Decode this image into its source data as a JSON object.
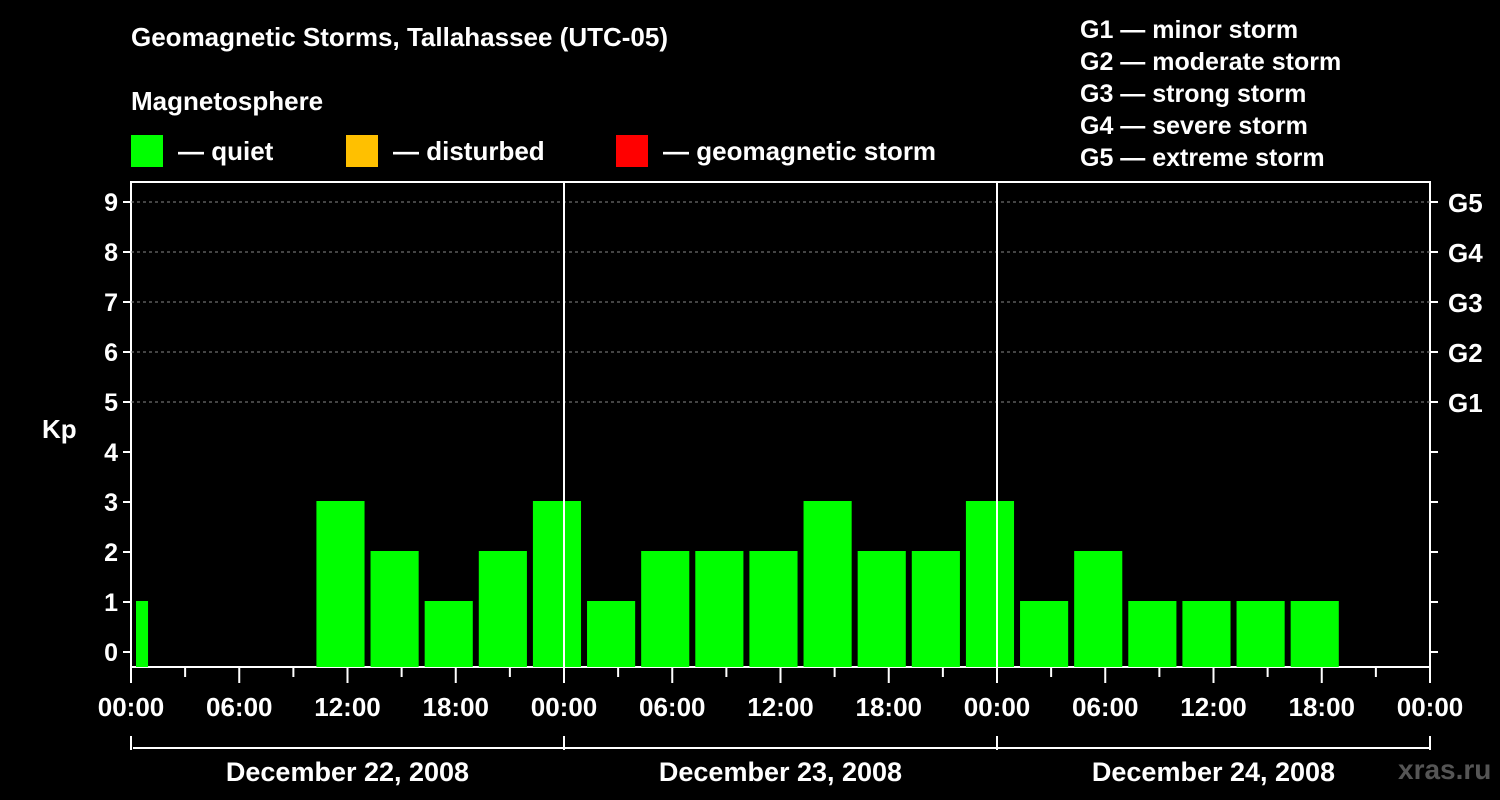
{
  "header": {
    "title": "Geomagnetic Storms, Tallahassee (UTC-05)",
    "subtitle": "Magnetosphere"
  },
  "legend": [
    {
      "label": "— quiet",
      "color": "#00ff00"
    },
    {
      "label": "— disturbed",
      "color": "#ffc000"
    },
    {
      "label": "— geomagnetic storm",
      "color": "#ff0000"
    }
  ],
  "storm_scale": [
    "G1 — minor storm",
    "G2 — moderate storm",
    "G3 — strong storm",
    "G4 — severe storm",
    "G5 — extreme storm"
  ],
  "watermark": "xras.ru",
  "chart_data": {
    "type": "bar",
    "ylabel": "Kp",
    "ylim": [
      0,
      9
    ],
    "yticks": [
      "0",
      "1",
      "2",
      "3",
      "4",
      "5",
      "6",
      "7",
      "8",
      "9"
    ],
    "right_axis_labels": [
      {
        "kp": 5,
        "label": "G1"
      },
      {
        "kp": 6,
        "label": "G2"
      },
      {
        "kp": 7,
        "label": "G3"
      },
      {
        "kp": 8,
        "label": "G4"
      },
      {
        "kp": 9,
        "label": "G5"
      }
    ],
    "grid": "dashed horizontal at Kp 5-9",
    "x_tick_labels": [
      "00:00",
      "06:00",
      "12:00",
      "18:00",
      "00:00",
      "06:00",
      "12:00",
      "18:00",
      "00:00",
      "06:00",
      "12:00",
      "18:00",
      "00:00"
    ],
    "days": [
      "December 22, 2008",
      "December 23, 2008",
      "December 24, 2008"
    ],
    "bars": [
      {
        "start": "Dec 22 00:00",
        "hours": 1,
        "value": 1,
        "color": "#00ff00"
      },
      {
        "start": "Dec 22 10:00",
        "hours": 3,
        "value": 3,
        "color": "#00ff00"
      },
      {
        "start": "Dec 22 13:00",
        "hours": 3,
        "value": 2,
        "color": "#00ff00"
      },
      {
        "start": "Dec 22 16:00",
        "hours": 3,
        "value": 1,
        "color": "#00ff00"
      },
      {
        "start": "Dec 22 19:00",
        "hours": 3,
        "value": 2,
        "color": "#00ff00"
      },
      {
        "start": "Dec 22 22:00",
        "hours": 3,
        "value": 3,
        "color": "#00ff00"
      },
      {
        "start": "Dec 23 01:00",
        "hours": 3,
        "value": 1,
        "color": "#00ff00"
      },
      {
        "start": "Dec 23 04:00",
        "hours": 3,
        "value": 2,
        "color": "#00ff00"
      },
      {
        "start": "Dec 23 07:00",
        "hours": 3,
        "value": 2,
        "color": "#00ff00"
      },
      {
        "start": "Dec 23 10:00",
        "hours": 3,
        "value": 2,
        "color": "#00ff00"
      },
      {
        "start": "Dec 23 13:00",
        "hours": 3,
        "value": 3,
        "color": "#00ff00"
      },
      {
        "start": "Dec 23 16:00",
        "hours": 3,
        "value": 2,
        "color": "#00ff00"
      },
      {
        "start": "Dec 23 19:00",
        "hours": 3,
        "value": 2,
        "color": "#00ff00"
      },
      {
        "start": "Dec 23 22:00",
        "hours": 3,
        "value": 3,
        "color": "#00ff00"
      },
      {
        "start": "Dec 24 01:00",
        "hours": 3,
        "value": 1,
        "color": "#00ff00"
      },
      {
        "start": "Dec 24 04:00",
        "hours": 3,
        "value": 2,
        "color": "#00ff00"
      },
      {
        "start": "Dec 24 07:00",
        "hours": 3,
        "value": 1,
        "color": "#00ff00"
      },
      {
        "start": "Dec 24 10:00",
        "hours": 3,
        "value": 1,
        "color": "#00ff00"
      },
      {
        "start": "Dec 24 13:00",
        "hours": 3,
        "value": 1,
        "color": "#00ff00"
      },
      {
        "start": "Dec 24 16:00",
        "hours": 3,
        "value": 1,
        "color": "#00ff00"
      }
    ]
  }
}
